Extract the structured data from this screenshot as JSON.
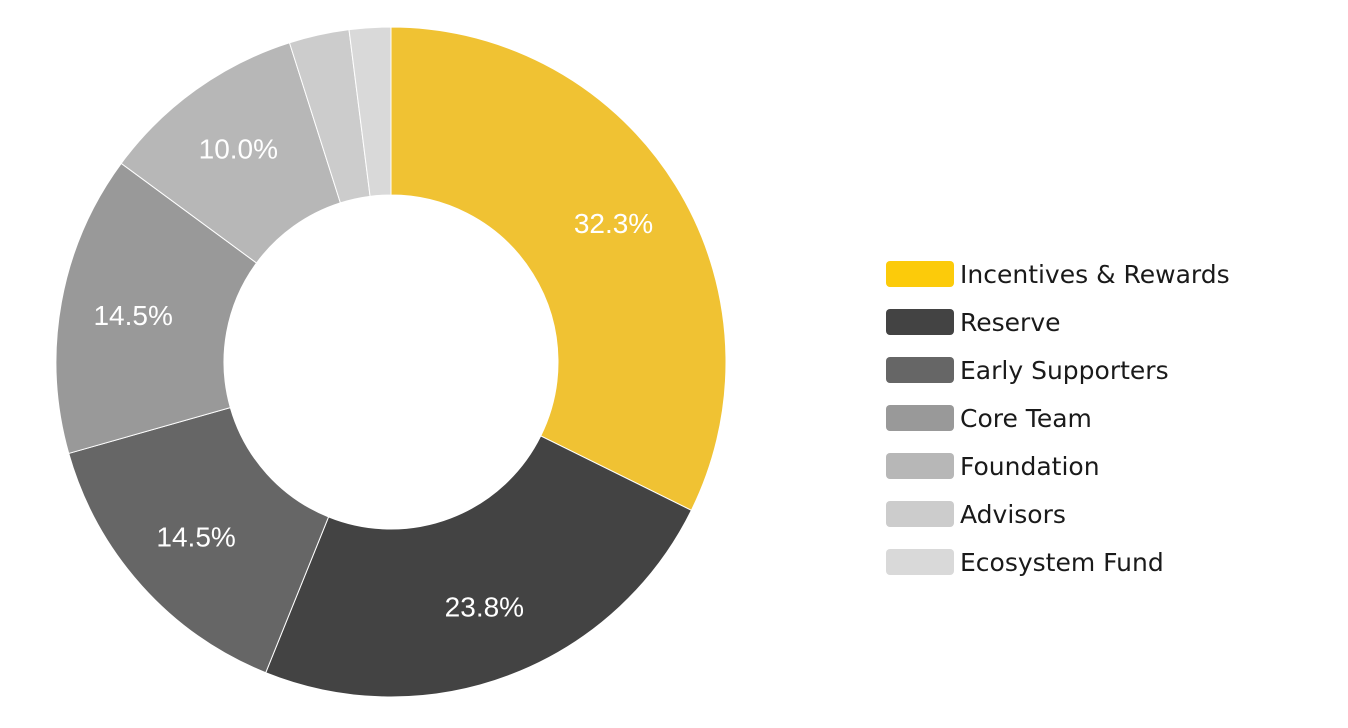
{
  "chart_data": {
    "type": "pie",
    "subtype": "donut",
    "title": "",
    "legend_position": "right",
    "slices": [
      {
        "name": "Incentives & Rewards",
        "value": 32.3,
        "label": "32.3%",
        "color": "#F0C233",
        "legend_color": "#FCCB0A"
      },
      {
        "name": "Reserve",
        "value": 23.8,
        "label": "23.8%",
        "color": "#434343",
        "legend_color": "#434343"
      },
      {
        "name": "Early Supporters",
        "value": 14.5,
        "label": "14.5%",
        "color": "#666666",
        "legend_color": "#666666"
      },
      {
        "name": "Core Team",
        "value": 14.5,
        "label": "14.5%",
        "color": "#999999",
        "legend_color": "#999999"
      },
      {
        "name": "Foundation",
        "value": 10.0,
        "label": "10.0%",
        "color": "#B7B7B7",
        "legend_color": "#B7B7B7"
      },
      {
        "name": "Advisors",
        "value": 2.9,
        "label": "",
        "color": "#CCCCCC",
        "legend_color": "#CCCCCC"
      },
      {
        "name": "Ecosystem Fund",
        "value": 2.0,
        "label": "",
        "color": "#D9D9D9",
        "legend_color": "#D9D9D9"
      }
    ]
  }
}
